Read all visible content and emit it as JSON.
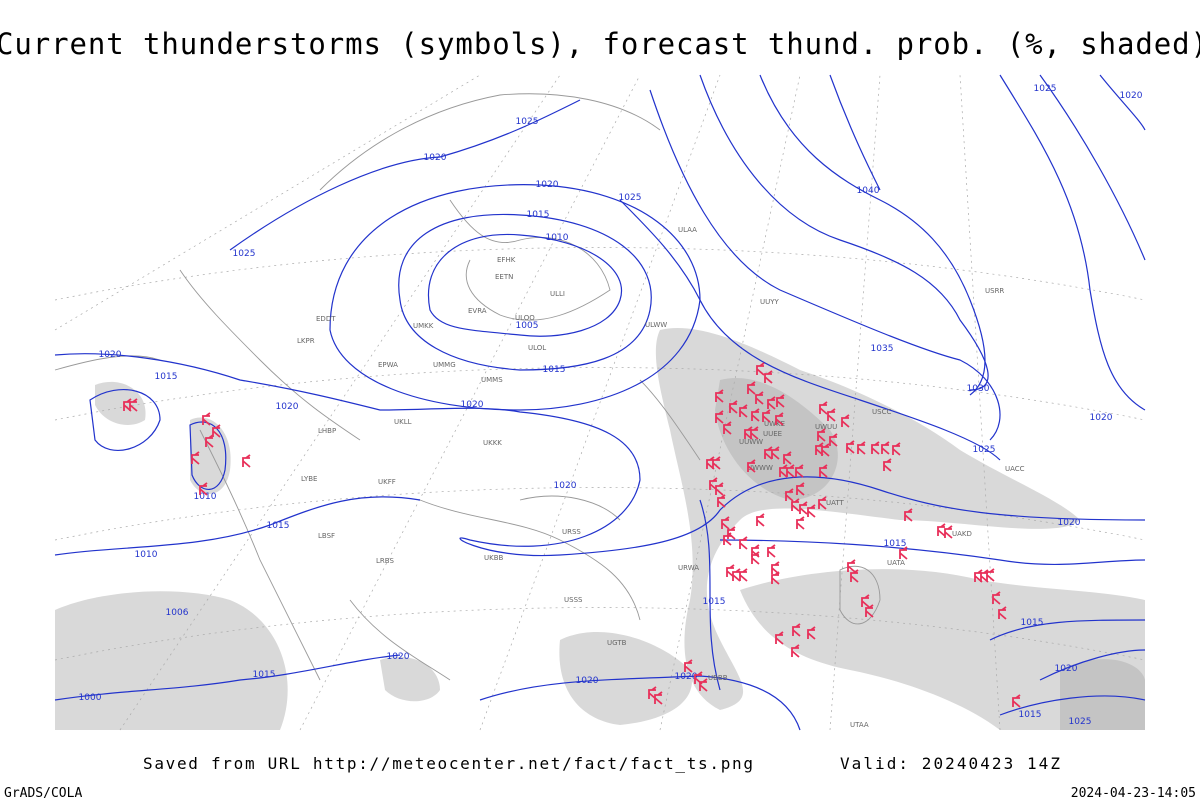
{
  "title": "Current thunderstorms (symbols), forecast thund. prob. (%, shaded)",
  "footer": {
    "source": "Saved from URL  http://meteocenter.net/fact/fact_ts.png",
    "valid": "Valid: 20240423 14Z",
    "credit": "GrADS/COLA",
    "timestamp": "2024-04-23-14:05"
  },
  "isobar_labels": [
    "1025",
    "1020",
    "1020",
    "1025",
    "1015",
    "1010",
    "1005",
    "1015",
    "1020",
    "1025",
    "1020",
    "1015",
    "1020",
    "1010",
    "1015",
    "1010",
    "1006",
    "1000",
    "1015",
    "1020",
    "1020",
    "1020",
    "1020",
    "1015",
    "1015",
    "1020",
    "1025",
    "1030",
    "1035",
    "1040",
    "1025",
    "1020",
    "1020",
    "1015",
    "1020",
    "1025",
    "1015"
  ],
  "stations": [
    "EFHK",
    "EETN",
    "ULLI",
    "ULOO",
    "EVRA",
    "ULOL",
    "UMKK",
    "EPWA",
    "UMMS",
    "UMMG",
    "UKKK",
    "UKLL",
    "LHBP",
    "LYBE",
    "LBSF",
    "LRBS",
    "UUWW",
    "UUEE",
    "UWWW",
    "UWUU",
    "UWKE",
    "UACC",
    "UATT",
    "UKBB",
    "URSS",
    "UGTB",
    "UBBB",
    "UTAA",
    "USSS",
    "ULAA",
    "UUYY",
    "USRR",
    "USCC",
    "UAKD",
    "UATA",
    "URWA",
    "UKFF",
    "LKPR",
    "EDDT",
    "ULWW"
  ]
}
